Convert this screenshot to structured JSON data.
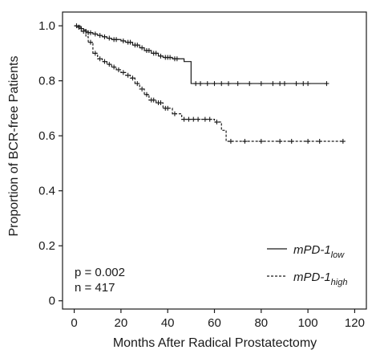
{
  "chart_data": {
    "type": "line",
    "subtype": "kaplan-meier",
    "xlabel": "Months After Radical Prostatectomy",
    "ylabel": "Proportion of BCR-free Patients",
    "xlim": [
      -5,
      125
    ],
    "ylim": [
      -0.03,
      1.05
    ],
    "xticks": [
      0,
      20,
      40,
      60,
      80,
      100,
      120
    ],
    "yticks": [
      0,
      0.2,
      0.4,
      0.6,
      0.8,
      1.0
    ],
    "ytick_labels": [
      "0",
      "0.2",
      "0.4",
      "0.6",
      "0.8",
      "1.0"
    ],
    "grid": false,
    "legend_position": "bottom-right",
    "annotations": {
      "p_value": "p = 0.002",
      "n": "n = 417"
    },
    "series": [
      {
        "name": "mPD-1",
        "name_subscript": "low",
        "line_style": "solid",
        "color": "#1a1a1a",
        "steps": [
          [
            0,
            1.0
          ],
          [
            2,
            0.995
          ],
          [
            3,
            0.99
          ],
          [
            4,
            0.985
          ],
          [
            5,
            0.98
          ],
          [
            6,
            0.975
          ],
          [
            8,
            0.97
          ],
          [
            10,
            0.965
          ],
          [
            12,
            0.96
          ],
          [
            14,
            0.955
          ],
          [
            16,
            0.95
          ],
          [
            20,
            0.945
          ],
          [
            22,
            0.94
          ],
          [
            25,
            0.93
          ],
          [
            28,
            0.92
          ],
          [
            30,
            0.91
          ],
          [
            33,
            0.9
          ],
          [
            36,
            0.89
          ],
          [
            38,
            0.885
          ],
          [
            42,
            0.88
          ],
          [
            47,
            0.87
          ],
          [
            50,
            0.79
          ],
          [
            108,
            0.79
          ]
        ],
        "censored": [
          [
            1,
            1.0
          ],
          [
            2,
            0.995
          ],
          [
            3,
            0.99
          ],
          [
            5,
            0.98
          ],
          [
            6,
            0.975
          ],
          [
            7,
            0.975
          ],
          [
            9,
            0.97
          ],
          [
            11,
            0.965
          ],
          [
            13,
            0.96
          ],
          [
            15,
            0.955
          ],
          [
            17,
            0.95
          ],
          [
            18,
            0.95
          ],
          [
            21,
            0.945
          ],
          [
            23,
            0.94
          ],
          [
            24,
            0.94
          ],
          [
            26,
            0.93
          ],
          [
            27,
            0.93
          ],
          [
            29,
            0.92
          ],
          [
            31,
            0.91
          ],
          [
            32,
            0.91
          ],
          [
            34,
            0.9
          ],
          [
            35,
            0.9
          ],
          [
            37,
            0.89
          ],
          [
            39,
            0.885
          ],
          [
            40,
            0.885
          ],
          [
            41,
            0.885
          ],
          [
            43,
            0.88
          ],
          [
            44,
            0.88
          ],
          [
            52,
            0.79
          ],
          [
            54,
            0.79
          ],
          [
            57,
            0.79
          ],
          [
            60,
            0.79
          ],
          [
            63,
            0.79
          ],
          [
            66,
            0.79
          ],
          [
            70,
            0.79
          ],
          [
            75,
            0.79
          ],
          [
            80,
            0.79
          ],
          [
            85,
            0.79
          ],
          [
            88,
            0.79
          ],
          [
            90,
            0.79
          ],
          [
            95,
            0.79
          ],
          [
            98,
            0.79
          ],
          [
            100,
            0.79
          ],
          [
            108,
            0.79
          ]
        ]
      },
      {
        "name": "mPD-1",
        "name_subscript": "high",
        "line_style": "dashed",
        "color": "#1a1a1a",
        "steps": [
          [
            0,
            1.0
          ],
          [
            3,
            0.98
          ],
          [
            5,
            0.96
          ],
          [
            6,
            0.94
          ],
          [
            8,
            0.9
          ],
          [
            10,
            0.88
          ],
          [
            12,
            0.87
          ],
          [
            14,
            0.86
          ],
          [
            16,
            0.85
          ],
          [
            18,
            0.84
          ],
          [
            20,
            0.83
          ],
          [
            22,
            0.82
          ],
          [
            24,
            0.81
          ],
          [
            26,
            0.79
          ],
          [
            28,
            0.77
          ],
          [
            30,
            0.75
          ],
          [
            32,
            0.73
          ],
          [
            35,
            0.72
          ],
          [
            38,
            0.7
          ],
          [
            42,
            0.68
          ],
          [
            46,
            0.66
          ],
          [
            55,
            0.66
          ],
          [
            60,
            0.65
          ],
          [
            63,
            0.62
          ],
          [
            65,
            0.58
          ],
          [
            115,
            0.58
          ]
        ],
        "censored": [
          [
            2,
            0.995
          ],
          [
            4,
            0.98
          ],
          [
            7,
            0.94
          ],
          [
            9,
            0.9
          ],
          [
            11,
            0.88
          ],
          [
            13,
            0.87
          ],
          [
            15,
            0.86
          ],
          [
            17,
            0.85
          ],
          [
            19,
            0.84
          ],
          [
            21,
            0.83
          ],
          [
            23,
            0.82
          ],
          [
            25,
            0.81
          ],
          [
            27,
            0.79
          ],
          [
            29,
            0.77
          ],
          [
            31,
            0.75
          ],
          [
            33,
            0.73
          ],
          [
            34,
            0.73
          ],
          [
            36,
            0.72
          ],
          [
            37,
            0.72
          ],
          [
            39,
            0.7
          ],
          [
            40,
            0.7
          ],
          [
            43,
            0.68
          ],
          [
            47,
            0.66
          ],
          [
            49,
            0.66
          ],
          [
            51,
            0.66
          ],
          [
            53,
            0.66
          ],
          [
            56,
            0.66
          ],
          [
            58,
            0.66
          ],
          [
            61,
            0.65
          ],
          [
            67,
            0.58
          ],
          [
            73,
            0.58
          ],
          [
            80,
            0.58
          ],
          [
            88,
            0.58
          ],
          [
            93,
            0.58
          ],
          [
            100,
            0.58
          ],
          [
            105,
            0.58
          ],
          [
            115,
            0.58
          ]
        ]
      }
    ]
  }
}
